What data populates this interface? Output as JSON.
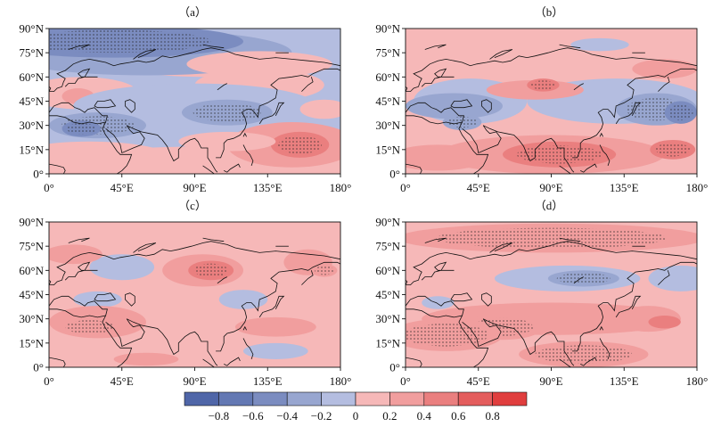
{
  "panels": [
    {
      "id": "a",
      "title": "（a）"
    },
    {
      "id": "b",
      "title": "（b）"
    },
    {
      "id": "c",
      "title": "（c）"
    },
    {
      "id": "d",
      "title": "（d）"
    }
  ],
  "axes": {
    "lat_labels": [
      "90°N",
      "75°N",
      "60°N",
      "45°N",
      "30°N",
      "15°N",
      "0°"
    ],
    "lon_labels": [
      "0°",
      "45°E",
      "90°E",
      "135°E",
      "180°"
    ]
  },
  "colorbar": {
    "levels": [
      "-0.8",
      "-0.6",
      "-0.4",
      "-0.2",
      "0",
      "0.2",
      "0.4",
      "0.6",
      "0.8"
    ],
    "colors": [
      "#4f66a8",
      "#6378b3",
      "#7b8cc0",
      "#98a6d0",
      "#b4bde0",
      "#f6b8b8",
      "#f19e9e",
      "#ea7f7f",
      "#e45d5d",
      "#e03e3e"
    ]
  },
  "colors": {
    "ocean_land_base": "#f6b8b8",
    "coast": "#111111"
  }
}
